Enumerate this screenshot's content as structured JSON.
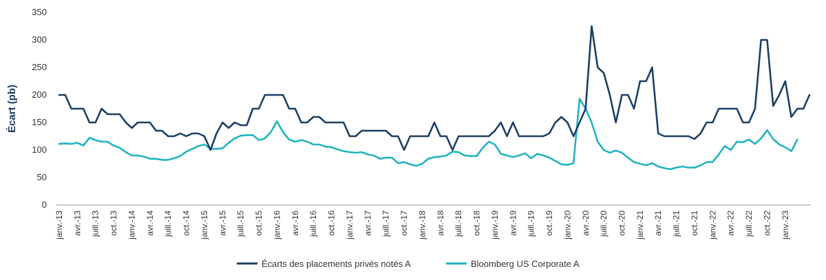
{
  "chart_data": {
    "type": "line",
    "title": "",
    "xlabel": "",
    "ylabel": "Écart (pb)",
    "ylim": [
      0,
      350
    ],
    "yticks": [
      0,
      50,
      100,
      150,
      200,
      250,
      300,
      350
    ],
    "grid": false,
    "legend_position": "bottom",
    "x_tick_labels": [
      "janv.-13",
      "avr.-13",
      "juill.-13",
      "oct.-13",
      "janv.-14",
      "avr.-14",
      "juill.-14",
      "oct.-14",
      "janv.-15",
      "avr.-15",
      "juill.-15",
      "oct.-15",
      "janv.-16",
      "avr.-16",
      "juill.-16",
      "oct.-16",
      "janv.-17",
      "avr.-17",
      "juill.-17",
      "oct.-17",
      "janv.-18",
      "avr.-18",
      "juill.-18",
      "oct.-18",
      "janv.-19",
      "avr.-19",
      "juill.-19",
      "oct.-19",
      "janv.-20",
      "avr.-20",
      "juill.-20",
      "oct.-20",
      "janv.-21",
      "avr.-21",
      "juill.-21",
      "oct.-21",
      "janv.-22",
      "avr.-22",
      "juill.-22",
      "oct.-22",
      "janv.-23"
    ],
    "x_start": "janv.-13",
    "series": [
      {
        "name": "Écarts des placements privés notés A",
        "color": "#1b3f63",
        "values": [
          200,
          200,
          175,
          175,
          175,
          150,
          150,
          175,
          165,
          165,
          165,
          150,
          140,
          150,
          150,
          150,
          135,
          135,
          125,
          125,
          130,
          125,
          130,
          130,
          125,
          100,
          130,
          150,
          140,
          150,
          145,
          145,
          175,
          175,
          200,
          200,
          200,
          200,
          175,
          175,
          150,
          150,
          160,
          160,
          150,
          150,
          150,
          150,
          125,
          125,
          135,
          135,
          135,
          135,
          135,
          125,
          125,
          100,
          125,
          125,
          125,
          125,
          150,
          125,
          125,
          100,
          125,
          125,
          125,
          125,
          125,
          125,
          135,
          150,
          125,
          150,
          125,
          125,
          125,
          125,
          125,
          130,
          150,
          160,
          150,
          125,
          150,
          175,
          325,
          250,
          240,
          200,
          150,
          200,
          200,
          175,
          225,
          225,
          250,
          130,
          125,
          125,
          125,
          125,
          125,
          120,
          130,
          150,
          150,
          175,
          175,
          175,
          175,
          150,
          150,
          175,
          300,
          300,
          180,
          200,
          225,
          160,
          175,
          175,
          200
        ]
      },
      {
        "name": "Bloomberg US Corporate A",
        "color": "#1fb4bd",
        "values": [
          111,
          112,
          111,
          113,
          108,
          122,
          118,
          115,
          115,
          108,
          104,
          96,
          90,
          90,
          88,
          84,
          84,
          82,
          82,
          85,
          89,
          97,
          102,
          107,
          110,
          102,
          102,
          103,
          113,
          121,
          126,
          127,
          127,
          118,
          121,
          133,
          152,
          132,
          119,
          115,
          118,
          115,
          110,
          110,
          106,
          105,
          101,
          98,
          96,
          95,
          96,
          92,
          90,
          84,
          86,
          86,
          76,
          78,
          74,
          71,
          75,
          84,
          87,
          88,
          90,
          97,
          96,
          90,
          89,
          89,
          104,
          115,
          110,
          93,
          90,
          87,
          90,
          94,
          85,
          93,
          90,
          86,
          80,
          74,
          73,
          76,
          193,
          175,
          150,
          115,
          100,
          95,
          99,
          95,
          86,
          78,
          75,
          72,
          76,
          70,
          67,
          65,
          68,
          70,
          68,
          68,
          72,
          78,
          78,
          92,
          107,
          100,
          115,
          114,
          119,
          111,
          121,
          136,
          120,
          110,
          105,
          98,
          119
        ]
      }
    ]
  }
}
